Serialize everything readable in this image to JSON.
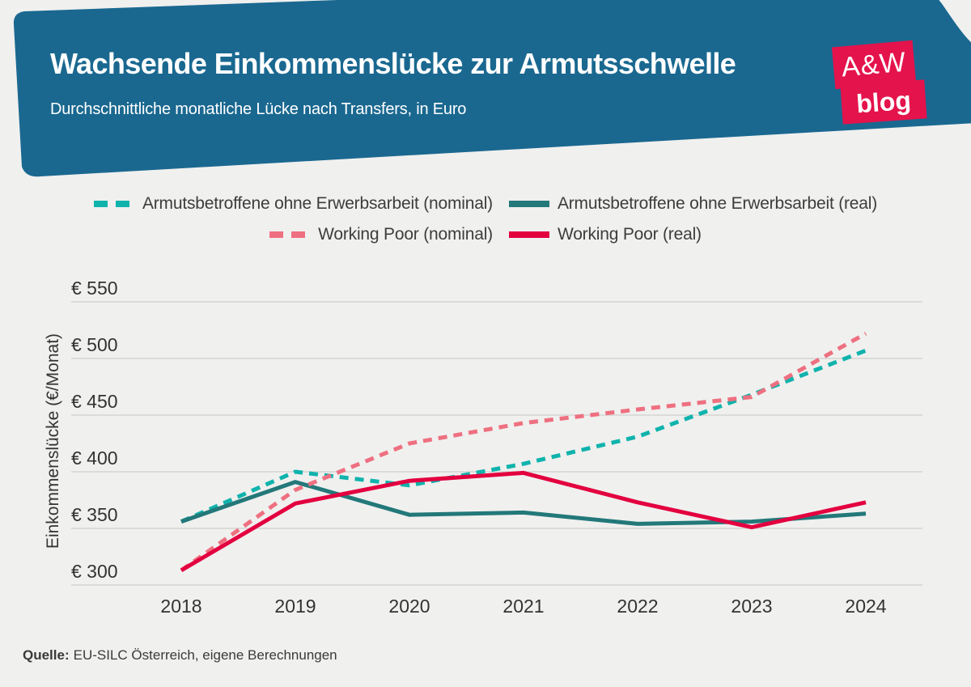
{
  "header": {
    "title": "Wachsende Einkommenslücke zur Armutsschwelle",
    "subtitle": "Durchschnittliche monatliche Lücke nach Transfers, in Euro",
    "logo": {
      "line1": "A&W",
      "line2": "blog"
    },
    "banner_color": "#1A6890",
    "logo_color": "#E4134C"
  },
  "legend": {
    "rows": [
      [
        0,
        1
      ],
      [
        2,
        3
      ]
    ]
  },
  "chart_data": {
    "type": "line",
    "x": [
      2018,
      2019,
      2020,
      2021,
      2022,
      2023,
      2024
    ],
    "series": [
      {
        "name": "Armutsbetroffene ohne Erwerbsarbeit (nominal)",
        "style": "dashed",
        "color": "#0FB3AC",
        "values": [
          356,
          400,
          388,
          407,
          431,
          468,
          507
        ]
      },
      {
        "name": "Armutsbetroffene ohne Erwerbsarbeit (real)",
        "style": "solid",
        "color": "#237879",
        "values": [
          356,
          391,
          362,
          364,
          354,
          356,
          363
        ]
      },
      {
        "name": "Working Poor (nominal)",
        "style": "dashed",
        "color": "#EE7080",
        "values": [
          313,
          384,
          425,
          443,
          455,
          466,
          522
        ]
      },
      {
        "name": "Working Poor (real)",
        "style": "solid",
        "color": "#E3003F",
        "values": [
          313,
          372,
          392,
          399,
          373,
          351,
          373
        ]
      }
    ],
    "ylabel": "Einkommenslücke (€/Monat)",
    "yticks": [
      300,
      350,
      400,
      450,
      500,
      550
    ],
    "ytick_prefix": "€ ",
    "ylim": [
      300,
      550
    ],
    "grid": true,
    "legend_position": "top",
    "gridline_color": "#DBDBD9"
  },
  "source": {
    "label": "Quelle:",
    "text": "EU-SILC Österreich, eigene Berechnungen"
  }
}
